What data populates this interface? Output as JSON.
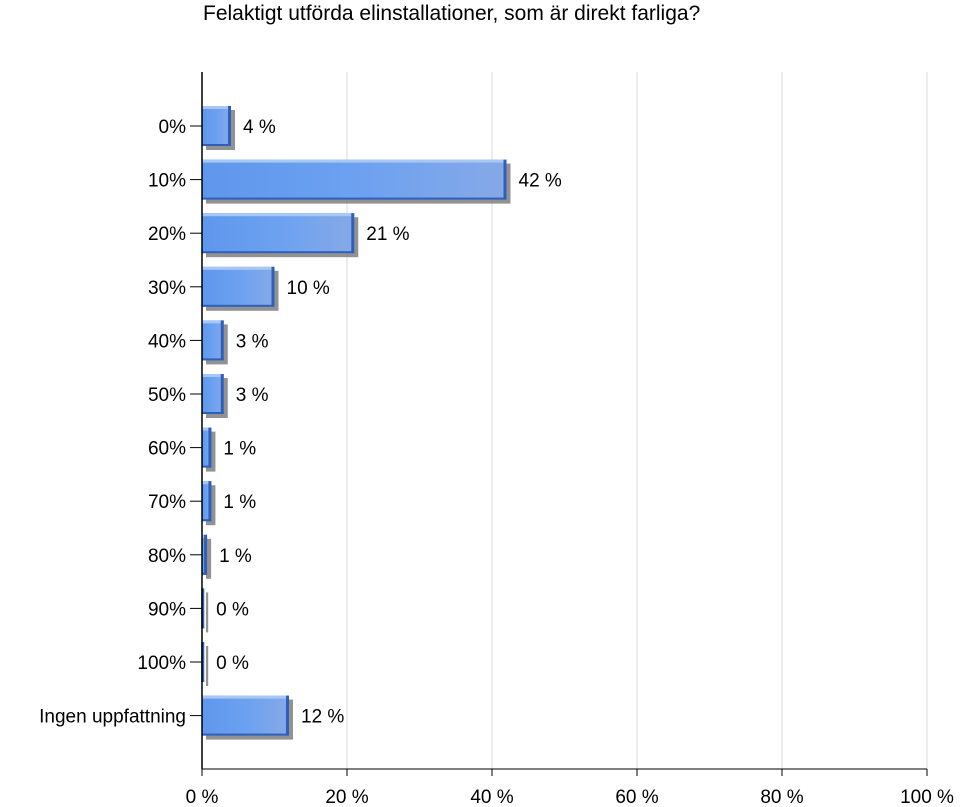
{
  "chart_data": {
    "type": "bar",
    "orientation": "horizontal",
    "title": "Felaktigt utförda elinstallationer, som är direkt farliga?",
    "xlabel": "",
    "ylabel": "",
    "categories": [
      "0%",
      "10%",
      "20%",
      "30%",
      "40%",
      "50%",
      "60%",
      "70%",
      "80%",
      "90%",
      "100%",
      "Ingen uppfattning"
    ],
    "values": [
      4,
      42,
      21,
      10,
      3,
      3,
      1.3,
      1.3,
      0.7,
      0.3,
      0.3,
      12
    ],
    "value_labels": [
      "4 %",
      "42 %",
      "21 %",
      "10 %",
      "3 %",
      "3 %",
      "1 %",
      "1 %",
      "1 %",
      "0 %",
      "0 %",
      "12 %"
    ],
    "xlim": [
      0,
      100
    ],
    "x_ticks": [
      0,
      20,
      40,
      60,
      80,
      100
    ],
    "x_tick_labels": [
      "0 %",
      "20 %",
      "40 %",
      "60 %",
      "80 %",
      "100 %"
    ],
    "grid": "vertical",
    "legend": "none",
    "colors": {
      "bar_light": "#a9c7f5",
      "bar_main": "#5f97ee",
      "bar_dark": "#2f5fb8",
      "shadow": "#6e6e6e",
      "grid": "#d9d9d9",
      "axis": "#000000"
    }
  }
}
